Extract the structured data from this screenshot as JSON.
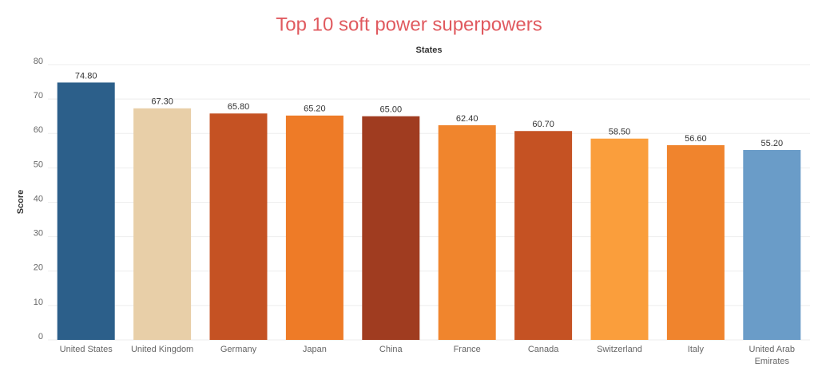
{
  "chart_data": {
    "type": "bar",
    "title": "Top 10 soft power superpowers",
    "x_label": "States",
    "y_label": "Score",
    "categories": [
      "United States",
      "United Kingdom",
      "Germany",
      "Japan",
      "China",
      "France",
      "Canada",
      "Switzerland",
      "Italy",
      "United Arab Emirates"
    ],
    "values": [
      74.8,
      67.3,
      65.8,
      65.2,
      65.0,
      62.4,
      60.7,
      58.5,
      56.6,
      55.2
    ],
    "value_labels": [
      "74.80",
      "67.30",
      "65.80",
      "65.20",
      "65.00",
      "62.40",
      "60.70",
      "58.50",
      "56.60",
      "55.20"
    ],
    "colors": [
      "#2c5f8a",
      "#e8cfa8",
      "#c55223",
      "#ee7b27",
      "#a03c20",
      "#f0852d",
      "#c55223",
      "#fa9e3c",
      "#f0842d",
      "#6a9cc8"
    ],
    "ylim": [
      0,
      80
    ],
    "yticks": [
      0,
      10,
      20,
      30,
      40,
      50,
      60,
      70,
      80
    ],
    "grid": true
  }
}
